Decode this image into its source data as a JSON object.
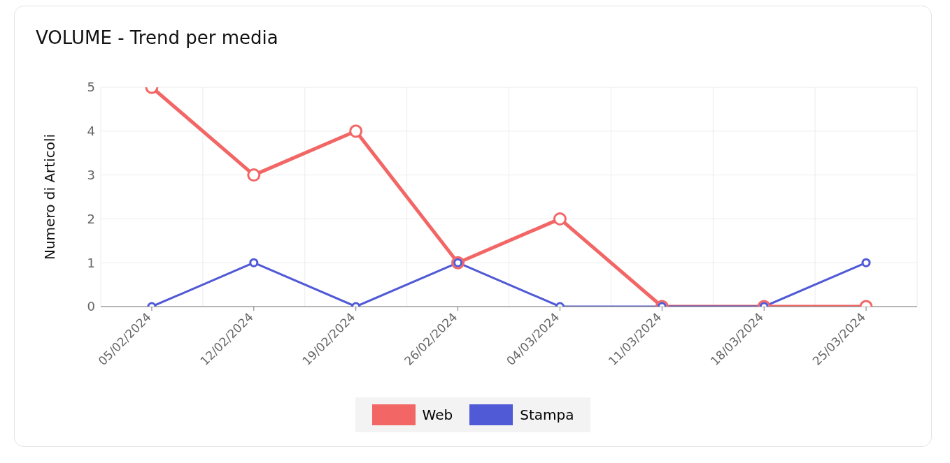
{
  "chart_data": {
    "type": "line",
    "title": "VOLUME - Trend per media",
    "ylabel": "Numero di Articoli",
    "categories": [
      "05/02/2024",
      "12/02/2024",
      "19/02/2024",
      "26/02/2024",
      "04/03/2024",
      "11/03/2024",
      "18/03/2024",
      "25/03/2024"
    ],
    "series": [
      {
        "name": "Web",
        "color": "#f26666",
        "values": [
          5,
          3,
          4,
          1,
          2,
          0,
          0,
          0
        ]
      },
      {
        "name": "Stampa",
        "color": "#5059d6",
        "values": [
          0,
          1,
          0,
          1,
          0,
          0,
          0,
          1
        ]
      }
    ],
    "ylim": [
      0,
      5
    ],
    "yticks": [
      0,
      1,
      2,
      3,
      4,
      5
    ],
    "grid": true,
    "legend": "bottom",
    "marker": "circle",
    "line_style": "solid"
  }
}
